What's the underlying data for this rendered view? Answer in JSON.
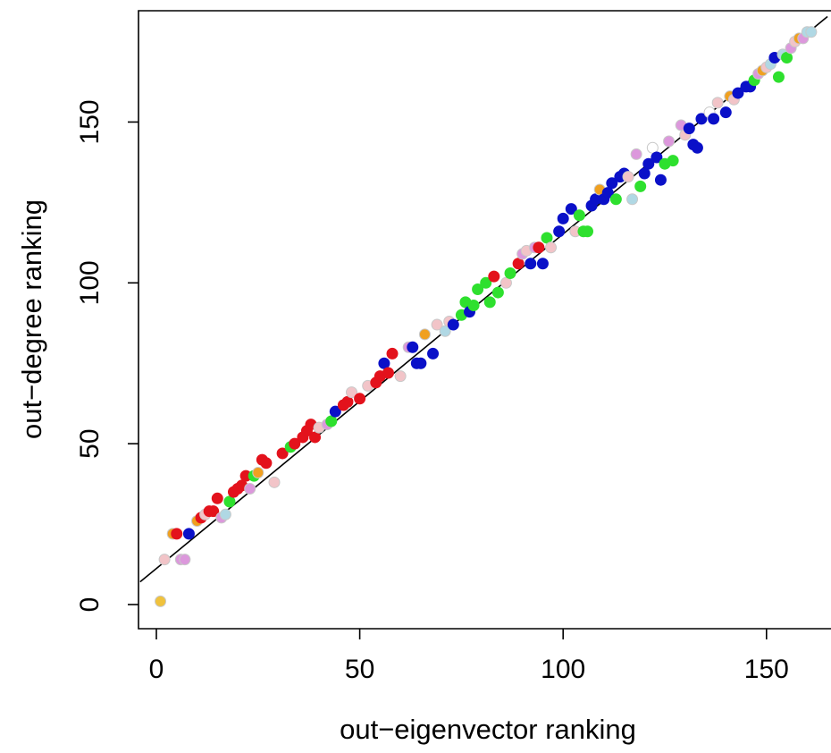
{
  "chart_data": {
    "type": "scatter",
    "title": "",
    "xlabel": "out−eigenvector ranking",
    "ylabel": "out−degree ranking",
    "xlim": [
      -4,
      163
    ],
    "ylim": [
      -5,
      185
    ],
    "x_ticks": [
      {
        "value": 0,
        "label": "0"
      },
      {
        "value": 50,
        "label": "50"
      },
      {
        "value": 100,
        "label": "100"
      },
      {
        "value": 150,
        "label": "150"
      }
    ],
    "y_ticks": [
      {
        "value": 0,
        "label": "0"
      },
      {
        "value": 50,
        "label": "50"
      },
      {
        "value": 100,
        "label": "100"
      },
      {
        "value": 150,
        "label": "150"
      }
    ],
    "grid": false,
    "legend": "none",
    "reference_line": {
      "intercept": 11.2,
      "slope": 1.04
    },
    "colors": {
      "red": "#e3121c",
      "blue": "#0a10c8",
      "green": "#2ee02e",
      "orange": "#f0a020",
      "violet": "#dc98dc",
      "pink": "#f2c4c8",
      "lightblue": "#b0d8e4",
      "white": "#ffffff",
      "gold": "#f0c23c"
    },
    "points": [
      {
        "x": 1,
        "y": 1,
        "color": "gold"
      },
      {
        "x": 2,
        "y": 14,
        "color": "pink"
      },
      {
        "x": 4,
        "y": 22,
        "color": "orange"
      },
      {
        "x": 5,
        "y": 22,
        "color": "red"
      },
      {
        "x": 6,
        "y": 14,
        "color": "violet"
      },
      {
        "x": 7,
        "y": 14,
        "color": "violet"
      },
      {
        "x": 8,
        "y": 22,
        "color": "blue"
      },
      {
        "x": 10,
        "y": 26,
        "color": "orange"
      },
      {
        "x": 11,
        "y": 27,
        "color": "red"
      },
      {
        "x": 12,
        "y": 28,
        "color": "pink"
      },
      {
        "x": 13,
        "y": 29,
        "color": "red"
      },
      {
        "x": 14,
        "y": 29,
        "color": "red"
      },
      {
        "x": 15,
        "y": 33,
        "color": "red"
      },
      {
        "x": 16,
        "y": 27,
        "color": "violet"
      },
      {
        "x": 17,
        "y": 28,
        "color": "lightblue"
      },
      {
        "x": 18,
        "y": 32,
        "color": "green"
      },
      {
        "x": 19,
        "y": 35,
        "color": "red"
      },
      {
        "x": 20,
        "y": 36,
        "color": "red"
      },
      {
        "x": 21,
        "y": 37,
        "color": "red"
      },
      {
        "x": 22,
        "y": 40,
        "color": "red"
      },
      {
        "x": 23,
        "y": 36,
        "color": "violet"
      },
      {
        "x": 24,
        "y": 40,
        "color": "green"
      },
      {
        "x": 25,
        "y": 41,
        "color": "orange"
      },
      {
        "x": 26,
        "y": 45,
        "color": "red"
      },
      {
        "x": 27,
        "y": 44,
        "color": "red"
      },
      {
        "x": 29,
        "y": 38,
        "color": "pink"
      },
      {
        "x": 31,
        "y": 47,
        "color": "red"
      },
      {
        "x": 33,
        "y": 49,
        "color": "green"
      },
      {
        "x": 34,
        "y": 50,
        "color": "red"
      },
      {
        "x": 36,
        "y": 52,
        "color": "red"
      },
      {
        "x": 37,
        "y": 54,
        "color": "red"
      },
      {
        "x": 38,
        "y": 56,
        "color": "red"
      },
      {
        "x": 39,
        "y": 52,
        "color": "red"
      },
      {
        "x": 40,
        "y": 55,
        "color": "pink"
      },
      {
        "x": 42,
        "y": 56,
        "color": "violet"
      },
      {
        "x": 43,
        "y": 57,
        "color": "green"
      },
      {
        "x": 44,
        "y": 60,
        "color": "blue"
      },
      {
        "x": 46,
        "y": 62,
        "color": "red"
      },
      {
        "x": 47,
        "y": 63,
        "color": "red"
      },
      {
        "x": 48,
        "y": 66,
        "color": "pink"
      },
      {
        "x": 50,
        "y": 64,
        "color": "red"
      },
      {
        "x": 52,
        "y": 68,
        "color": "pink"
      },
      {
        "x": 54,
        "y": 69,
        "color": "red"
      },
      {
        "x": 55,
        "y": 71,
        "color": "red"
      },
      {
        "x": 56,
        "y": 75,
        "color": "blue"
      },
      {
        "x": 57,
        "y": 72,
        "color": "red"
      },
      {
        "x": 58,
        "y": 78,
        "color": "red"
      },
      {
        "x": 60,
        "y": 71,
        "color": "pink"
      },
      {
        "x": 62,
        "y": 80,
        "color": "violet"
      },
      {
        "x": 63,
        "y": 80,
        "color": "blue"
      },
      {
        "x": 64,
        "y": 75,
        "color": "blue"
      },
      {
        "x": 65,
        "y": 75,
        "color": "blue"
      },
      {
        "x": 66,
        "y": 84,
        "color": "orange"
      },
      {
        "x": 68,
        "y": 78,
        "color": "blue"
      },
      {
        "x": 69,
        "y": 87,
        "color": "pink"
      },
      {
        "x": 71,
        "y": 85,
        "color": "lightblue"
      },
      {
        "x": 72,
        "y": 88,
        "color": "pink"
      },
      {
        "x": 73,
        "y": 87,
        "color": "blue"
      },
      {
        "x": 75,
        "y": 90,
        "color": "green"
      },
      {
        "x": 76,
        "y": 94,
        "color": "green"
      },
      {
        "x": 77,
        "y": 91,
        "color": "blue"
      },
      {
        "x": 78,
        "y": 93,
        "color": "green"
      },
      {
        "x": 79,
        "y": 98,
        "color": "green"
      },
      {
        "x": 81,
        "y": 100,
        "color": "green"
      },
      {
        "x": 82,
        "y": 94,
        "color": "green"
      },
      {
        "x": 83,
        "y": 102,
        "color": "red"
      },
      {
        "x": 84,
        "y": 97,
        "color": "green"
      },
      {
        "x": 86,
        "y": 100,
        "color": "pink"
      },
      {
        "x": 87,
        "y": 103,
        "color": "green"
      },
      {
        "x": 89,
        "y": 106,
        "color": "red"
      },
      {
        "x": 90,
        "y": 109,
        "color": "violet"
      },
      {
        "x": 91,
        "y": 110,
        "color": "pink"
      },
      {
        "x": 92,
        "y": 106,
        "color": "blue"
      },
      {
        "x": 93,
        "y": 111,
        "color": "violet"
      },
      {
        "x": 94,
        "y": 111,
        "color": "red"
      },
      {
        "x": 95,
        "y": 106,
        "color": "blue"
      },
      {
        "x": 96,
        "y": 114,
        "color": "green"
      },
      {
        "x": 97,
        "y": 111,
        "color": "pink"
      },
      {
        "x": 99,
        "y": 116,
        "color": "blue"
      },
      {
        "x": 100,
        "y": 120,
        "color": "blue"
      },
      {
        "x": 102,
        "y": 123,
        "color": "blue"
      },
      {
        "x": 103,
        "y": 116,
        "color": "pink"
      },
      {
        "x": 104,
        "y": 121,
        "color": "green"
      },
      {
        "x": 105,
        "y": 116,
        "color": "green"
      },
      {
        "x": 106,
        "y": 116,
        "color": "green"
      },
      {
        "x": 107,
        "y": 124,
        "color": "blue"
      },
      {
        "x": 108,
        "y": 126,
        "color": "blue"
      },
      {
        "x": 109,
        "y": 129,
        "color": "orange"
      },
      {
        "x": 110,
        "y": 126,
        "color": "blue"
      },
      {
        "x": 111,
        "y": 128,
        "color": "blue"
      },
      {
        "x": 112,
        "y": 131,
        "color": "blue"
      },
      {
        "x": 113,
        "y": 126,
        "color": "green"
      },
      {
        "x": 114,
        "y": 133,
        "color": "blue"
      },
      {
        "x": 115,
        "y": 134,
        "color": "blue"
      },
      {
        "x": 116,
        "y": 133,
        "color": "pink"
      },
      {
        "x": 117,
        "y": 126,
        "color": "lightblue"
      },
      {
        "x": 118,
        "y": 140,
        "color": "violet"
      },
      {
        "x": 119,
        "y": 130,
        "color": "green"
      },
      {
        "x": 120,
        "y": 134,
        "color": "blue"
      },
      {
        "x": 121,
        "y": 137,
        "color": "blue"
      },
      {
        "x": 122,
        "y": 142,
        "color": "white"
      },
      {
        "x": 123,
        "y": 139,
        "color": "blue"
      },
      {
        "x": 124,
        "y": 132,
        "color": "blue"
      },
      {
        "x": 125,
        "y": 137,
        "color": "green"
      },
      {
        "x": 126,
        "y": 144,
        "color": "violet"
      },
      {
        "x": 127,
        "y": 138,
        "color": "green"
      },
      {
        "x": 129,
        "y": 149,
        "color": "violet"
      },
      {
        "x": 130,
        "y": 146,
        "color": "pink"
      },
      {
        "x": 131,
        "y": 148,
        "color": "blue"
      },
      {
        "x": 132,
        "y": 143,
        "color": "blue"
      },
      {
        "x": 133,
        "y": 142,
        "color": "blue"
      },
      {
        "x": 134,
        "y": 151,
        "color": "blue"
      },
      {
        "x": 136,
        "y": 153,
        "color": "white"
      },
      {
        "x": 137,
        "y": 151,
        "color": "blue"
      },
      {
        "x": 138,
        "y": 156,
        "color": "pink"
      },
      {
        "x": 140,
        "y": 153,
        "color": "blue"
      },
      {
        "x": 141,
        "y": 158,
        "color": "orange"
      },
      {
        "x": 142,
        "y": 157,
        "color": "pink"
      },
      {
        "x": 143,
        "y": 159,
        "color": "blue"
      },
      {
        "x": 145,
        "y": 161,
        "color": "blue"
      },
      {
        "x": 146,
        "y": 161,
        "color": "blue"
      },
      {
        "x": 147,
        "y": 163,
        "color": "green"
      },
      {
        "x": 148,
        "y": 165,
        "color": "violet"
      },
      {
        "x": 149,
        "y": 166,
        "color": "orange"
      },
      {
        "x": 150,
        "y": 167,
        "color": "pink"
      },
      {
        "x": 151,
        "y": 168,
        "color": "lightblue"
      },
      {
        "x": 152,
        "y": 170,
        "color": "blue"
      },
      {
        "x": 153,
        "y": 164,
        "color": "green"
      },
      {
        "x": 154,
        "y": 171,
        "color": "lightblue"
      },
      {
        "x": 155,
        "y": 170,
        "color": "green"
      },
      {
        "x": 156,
        "y": 173,
        "color": "violet"
      },
      {
        "x": 157,
        "y": 175,
        "color": "pink"
      },
      {
        "x": 158,
        "y": 176,
        "color": "orange"
      },
      {
        "x": 159,
        "y": 176,
        "color": "violet"
      },
      {
        "x": 160,
        "y": 178,
        "color": "lightblue"
      },
      {
        "x": 161,
        "y": 178,
        "color": "lightblue"
      }
    ]
  }
}
